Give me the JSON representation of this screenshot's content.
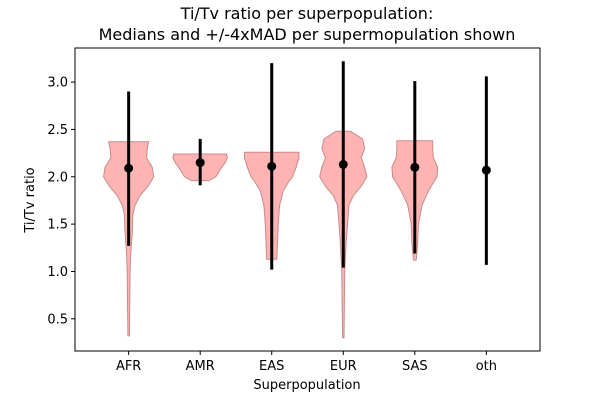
{
  "chart_data": {
    "type": "violin",
    "title_lines": [
      "Ti/Tv ratio per superpopulation:",
      "Medians and +/-4xMAD per supermopulation shown"
    ],
    "xlabel": "Superpopulation",
    "ylabel": "Ti/Tv ratio",
    "categories": [
      "AFR",
      "AMR",
      "EAS",
      "EUR",
      "SAS",
      "oth"
    ],
    "yticks": [
      0.5,
      1.0,
      1.5,
      2.0,
      2.5,
      3.0
    ],
    "ytick_labels": [
      "0.5",
      "1.0",
      "1.5",
      "2.0",
      "2.5",
      "3.0"
    ],
    "ylim": [
      0.16,
      3.36
    ],
    "median": [
      2.09,
      2.15,
      2.11,
      2.13,
      2.1,
      2.07
    ],
    "mad_low": [
      1.27,
      1.91,
      1.02,
      1.04,
      1.19,
      1.07
    ],
    "mad_high": [
      2.9,
      2.4,
      3.2,
      3.22,
      3.01,
      3.06
    ],
    "violins": [
      {
        "category": "AFR",
        "profile": [
          [
            0.32,
            0.01
          ],
          [
            0.6,
            0.015
          ],
          [
            1.0,
            0.02
          ],
          [
            1.2,
            0.03
          ],
          [
            1.4,
            0.05
          ],
          [
            1.6,
            0.06
          ],
          [
            1.7,
            0.09
          ],
          [
            1.8,
            0.16
          ],
          [
            1.9,
            0.27
          ],
          [
            2.0,
            0.35
          ],
          [
            2.1,
            0.33
          ],
          [
            2.2,
            0.25
          ],
          [
            2.3,
            0.26
          ],
          [
            2.37,
            0.28
          ]
        ]
      },
      {
        "category": "AMR",
        "profile": [
          [
            1.96,
            0.12
          ],
          [
            2.0,
            0.22
          ],
          [
            2.05,
            0.26
          ],
          [
            2.1,
            0.3
          ],
          [
            2.15,
            0.35
          ],
          [
            2.2,
            0.38
          ],
          [
            2.24,
            0.37
          ]
        ]
      },
      {
        "category": "EAS",
        "profile": [
          [
            1.13,
            0.07
          ],
          [
            1.3,
            0.08
          ],
          [
            1.5,
            0.09
          ],
          [
            1.7,
            0.11
          ],
          [
            1.85,
            0.16
          ],
          [
            1.95,
            0.24
          ],
          [
            2.0,
            0.29
          ],
          [
            2.1,
            0.34
          ],
          [
            2.2,
            0.38
          ],
          [
            2.26,
            0.38
          ]
        ]
      },
      {
        "category": "EUR",
        "profile": [
          [
            0.3,
            0.01
          ],
          [
            0.6,
            0.015
          ],
          [
            1.0,
            0.02
          ],
          [
            1.3,
            0.04
          ],
          [
            1.5,
            0.06
          ],
          [
            1.7,
            0.08
          ],
          [
            1.8,
            0.14
          ],
          [
            1.9,
            0.25
          ],
          [
            2.0,
            0.33
          ],
          [
            2.1,
            0.3
          ],
          [
            2.2,
            0.25
          ],
          [
            2.3,
            0.3
          ],
          [
            2.4,
            0.27
          ],
          [
            2.48,
            0.1
          ]
        ]
      },
      {
        "category": "SAS",
        "profile": [
          [
            1.12,
            0.02
          ],
          [
            1.3,
            0.04
          ],
          [
            1.5,
            0.05
          ],
          [
            1.7,
            0.1
          ],
          [
            1.85,
            0.19
          ],
          [
            1.95,
            0.27
          ],
          [
            2.0,
            0.31
          ],
          [
            2.1,
            0.32
          ],
          [
            2.2,
            0.26
          ],
          [
            2.3,
            0.25
          ],
          [
            2.38,
            0.25
          ]
        ]
      }
    ],
    "colors": {
      "violin_fill": "#ff9b9b",
      "violin_edge": "#c98a8a",
      "marker": "#000000",
      "axis": "#000000"
    }
  }
}
